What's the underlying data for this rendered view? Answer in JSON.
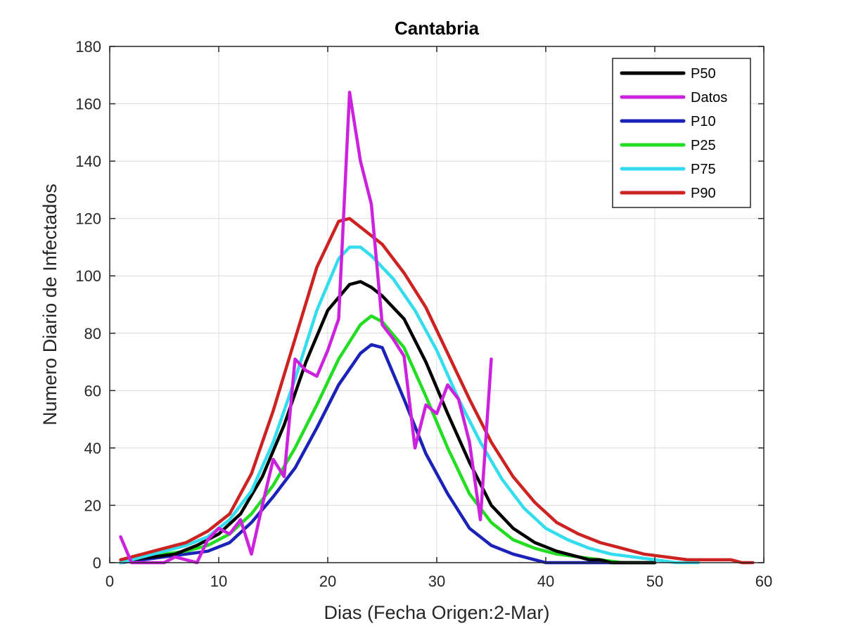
{
  "chart_data": {
    "type": "line",
    "title": "Cantabria",
    "xlabel": "Dias (Fecha Origen:2-Mar)",
    "ylabel": "Numero Diario de Infectados",
    "xlim": [
      0,
      60
    ],
    "ylim": [
      0,
      180
    ],
    "xticks": [
      0,
      10,
      20,
      30,
      40,
      50,
      60
    ],
    "yticks": [
      0,
      20,
      40,
      60,
      80,
      100,
      120,
      140,
      160,
      180
    ],
    "grid": true,
    "legend_position": "top-right",
    "series": [
      {
        "name": "P50",
        "color": "#000000",
        "x": [
          1,
          2,
          4,
          6,
          8,
          10,
          12,
          14,
          16,
          18,
          20,
          22,
          23,
          24,
          25,
          27,
          29,
          31,
          33,
          35,
          37,
          39,
          41,
          43,
          44,
          45,
          46,
          50
        ],
        "y": [
          0,
          1,
          2,
          3,
          6,
          10,
          17,
          30,
          48,
          70,
          88,
          97,
          98,
          96,
          93,
          85,
          70,
          52,
          35,
          20,
          12,
          7,
          4,
          2,
          1,
          1,
          0,
          0
        ]
      },
      {
        "name": "Datos",
        "color": "#cc22dd",
        "x": [
          1,
          2,
          3,
          4,
          5,
          6,
          7,
          8,
          9,
          10,
          11,
          12,
          13,
          14,
          15,
          16,
          17,
          18,
          19,
          20,
          21,
          22,
          23,
          24,
          25,
          26,
          27,
          28,
          29,
          30,
          31,
          32,
          33,
          34,
          35
        ],
        "y": [
          9,
          0,
          0,
          0,
          0,
          2,
          1,
          0,
          8,
          12,
          10,
          15,
          3,
          20,
          36,
          30,
          71,
          67,
          65,
          74,
          85,
          164,
          140,
          125,
          83,
          78,
          72,
          40,
          55,
          52,
          62,
          57,
          42,
          15,
          71
        ]
      },
      {
        "name": "P10",
        "color": "#1a22b8",
        "x": [
          1,
          3,
          5,
          7,
          9,
          11,
          13,
          15,
          17,
          19,
          21,
          23,
          24,
          25,
          27,
          29,
          31,
          33,
          35,
          37,
          39,
          40,
          45,
          50
        ],
        "y": [
          0,
          1,
          2,
          3,
          4,
          7,
          14,
          23,
          33,
          47,
          62,
          73,
          76,
          75,
          57,
          38,
          24,
          12,
          6,
          3,
          1,
          0,
          0,
          0
        ]
      },
      {
        "name": "P25",
        "color": "#22dd22",
        "x": [
          1,
          3,
          5,
          7,
          9,
          11,
          13,
          15,
          17,
          19,
          21,
          23,
          24,
          25,
          27,
          29,
          31,
          33,
          35,
          37,
          39,
          41,
          43,
          45,
          47,
          50
        ],
        "y": [
          0,
          2,
          3,
          4,
          6,
          10,
          17,
          27,
          40,
          55,
          71,
          83,
          86,
          84,
          75,
          58,
          40,
          24,
          14,
          8,
          5,
          3,
          2,
          1,
          0,
          0
        ]
      },
      {
        "name": "P75",
        "color": "#33ddee",
        "x": [
          1,
          3,
          5,
          7,
          9,
          11,
          13,
          15,
          17,
          19,
          21,
          22,
          23,
          24,
          26,
          28,
          30,
          32,
          34,
          36,
          38,
          40,
          42,
          44,
          46,
          48,
          50,
          52,
          54
        ],
        "y": [
          0,
          2,
          4,
          6,
          9,
          15,
          25,
          42,
          64,
          88,
          106,
          110,
          110,
          107,
          99,
          88,
          74,
          57,
          42,
          29,
          19,
          12,
          8,
          5,
          3,
          2,
          1,
          0,
          0
        ]
      },
      {
        "name": "P90",
        "color": "#cc2222",
        "x": [
          1,
          3,
          5,
          7,
          9,
          11,
          13,
          15,
          17,
          19,
          21,
          22,
          23,
          25,
          27,
          29,
          31,
          33,
          35,
          37,
          39,
          41,
          43,
          45,
          47,
          49,
          51,
          53,
          55,
          57,
          58,
          59
        ],
        "y": [
          1,
          3,
          5,
          7,
          11,
          17,
          31,
          53,
          78,
          103,
          119,
          120,
          117,
          111,
          101,
          89,
          73,
          57,
          42,
          30,
          21,
          14,
          10,
          7,
          5,
          3,
          2,
          1,
          1,
          1,
          0,
          0
        ]
      }
    ]
  }
}
